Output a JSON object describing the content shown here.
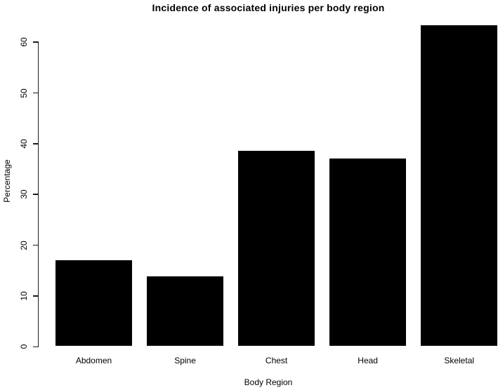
{
  "chart_data": {
    "type": "bar",
    "title": "Incidence of associated injuries per body region",
    "xlabel": "Body Region",
    "ylabel": "Percentage",
    "categories": [
      "Abdomen",
      "Spine",
      "Chest",
      "Head",
      "Skeletal"
    ],
    "values": [
      16.9,
      13.8,
      38.5,
      37,
      63.2
    ],
    "yticks": [
      0,
      10,
      20,
      30,
      40,
      50,
      60
    ],
    "ylim": [
      0,
      64
    ],
    "bar_color": "#000000",
    "axis_color": "#1a1a1a",
    "background": "#ffffff",
    "grid": false,
    "legend": null,
    "y_tick_label_rotation": -90
  }
}
